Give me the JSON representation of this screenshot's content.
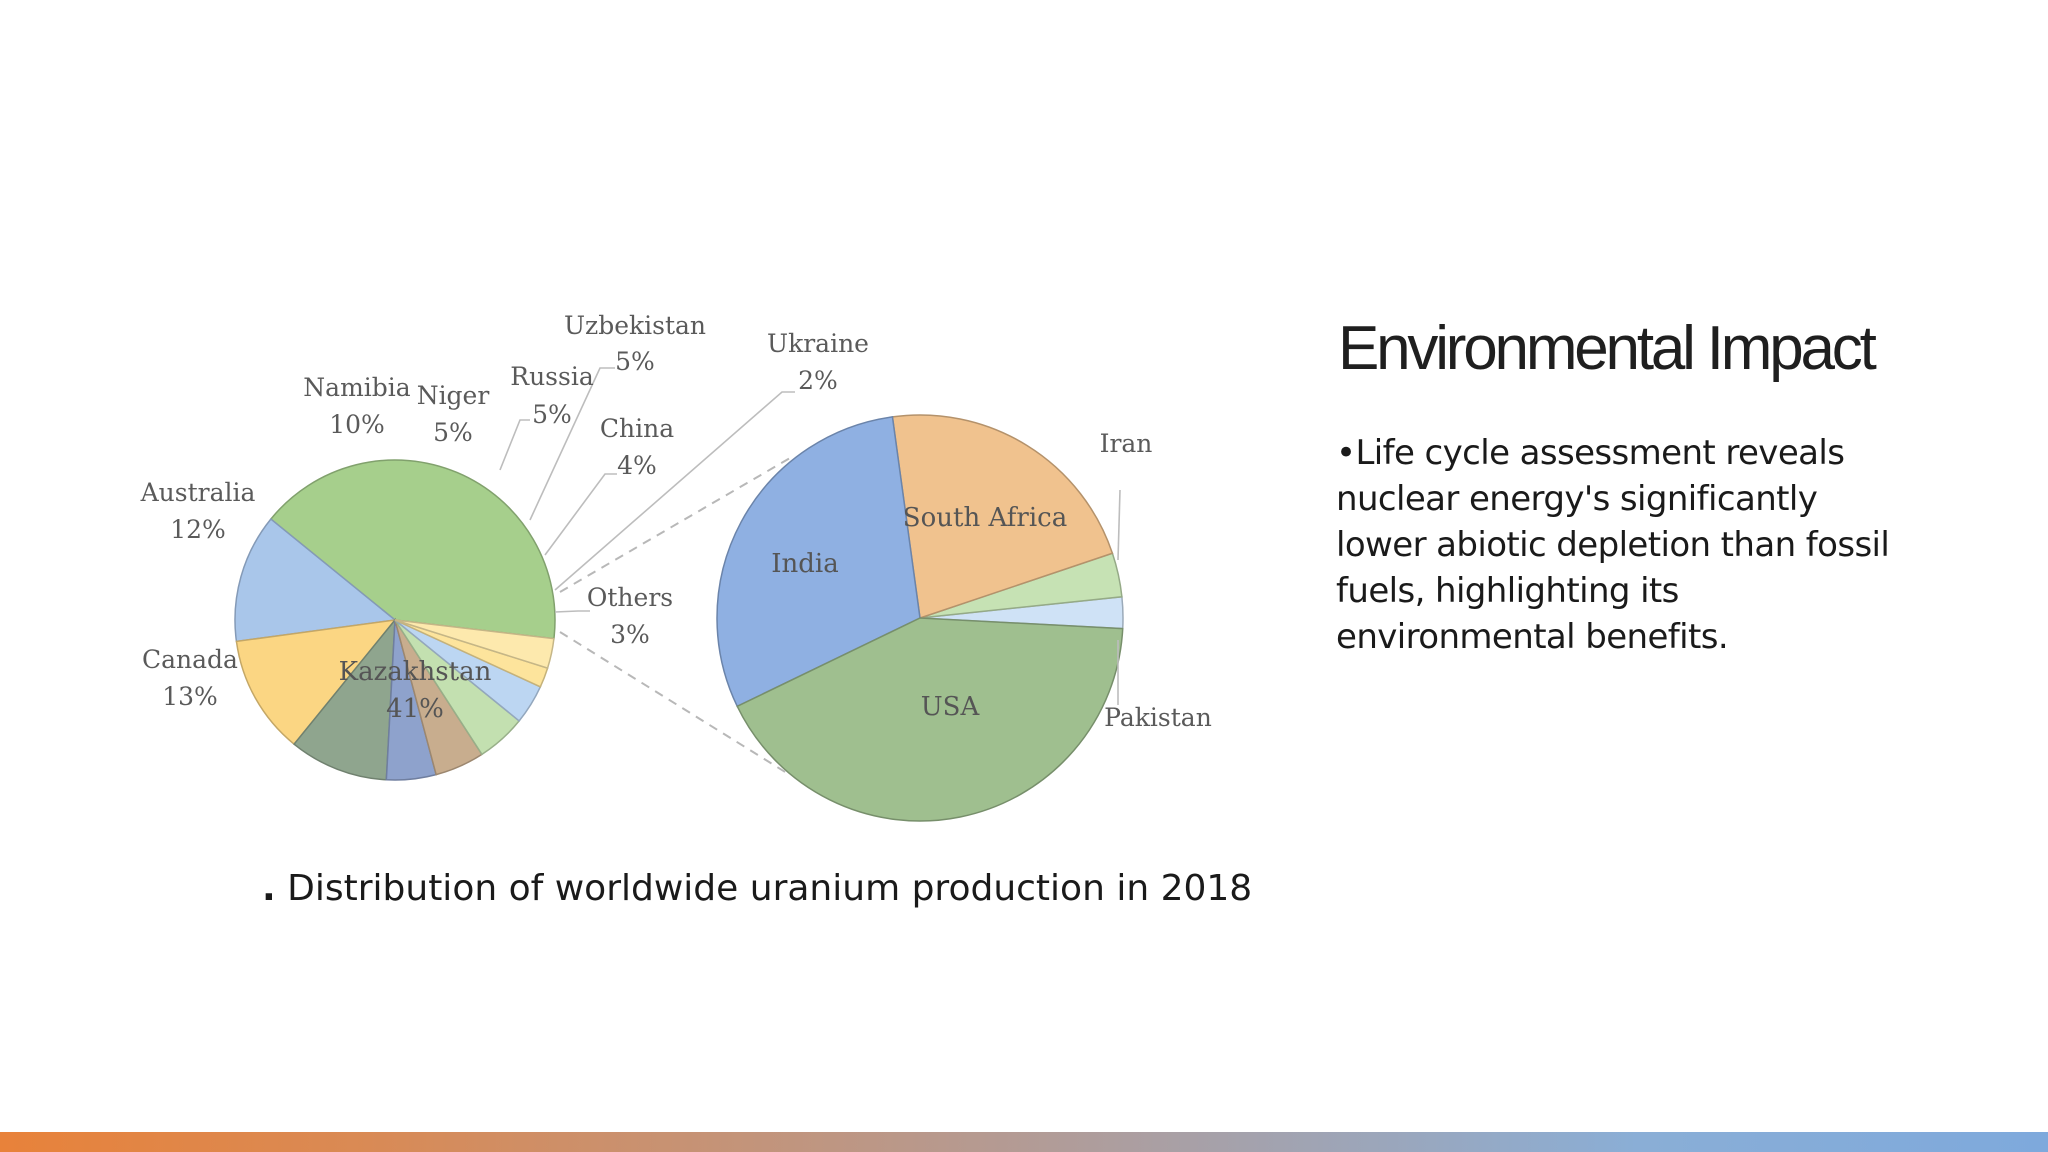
{
  "slide": {
    "title": "Environmental Impact",
    "body": "•Life cycle assessment reveals nuclear energy's significantly lower abiotic depletion than fossil fuels, highlighting its environmental benefits.",
    "caption_dot": ".",
    "caption_text": " Distribution of worldwide uranium production in 2018"
  },
  "chart_data": [
    {
      "type": "pie",
      "slices": [
        {
          "label": "Kazakhstan",
          "value_label": "41%",
          "value": 41,
          "color": "#a6cf8c"
        },
        {
          "label": "Canada",
          "value_label": "13%",
          "value": 13,
          "color": "#a9c6ea"
        },
        {
          "label": "Australia",
          "value_label": "12%",
          "value": 12,
          "color": "#fbd683"
        },
        {
          "label": "Namibia",
          "value_label": "10%",
          "value": 10,
          "color": "#8fa58e"
        },
        {
          "label": "Niger",
          "value_label": "5%",
          "value": 5,
          "color": "#8ea2cc"
        },
        {
          "label": "Russia",
          "value_label": "5%",
          "value": 5,
          "color": "#c8ad8e"
        },
        {
          "label": "Uzbekistan",
          "value_label": "5%",
          "value": 5,
          "color": "#c3e0b0"
        },
        {
          "label": "China",
          "value_label": "4%",
          "value": 4,
          "color": "#bcd6f2"
        },
        {
          "label": "Ukraine",
          "value_label": "2%",
          "value": 2,
          "color": "#fde49c"
        },
        {
          "label": "Others",
          "value_label": "3%",
          "value": 3,
          "color": "#fde9ad"
        }
      ]
    },
    {
      "type": "pie",
      "slices": [
        {
          "label": "USA",
          "value": 42,
          "color": "#9fbf8f"
        },
        {
          "label": "India",
          "value": 30,
          "color": "#8fb0e2"
        },
        {
          "label": "South Africa",
          "value": 22,
          "color": "#f0c28e"
        },
        {
          "label": "Iran",
          "value": 3.5,
          "color": "#c6e2b4"
        },
        {
          "label": "Pakistan",
          "value": 2.5,
          "color": "#cfe2f6"
        }
      ]
    }
  ],
  "colors": {
    "bottom_bar_start": "#e8823a",
    "bottom_bar_end": "#7ea9dc"
  }
}
